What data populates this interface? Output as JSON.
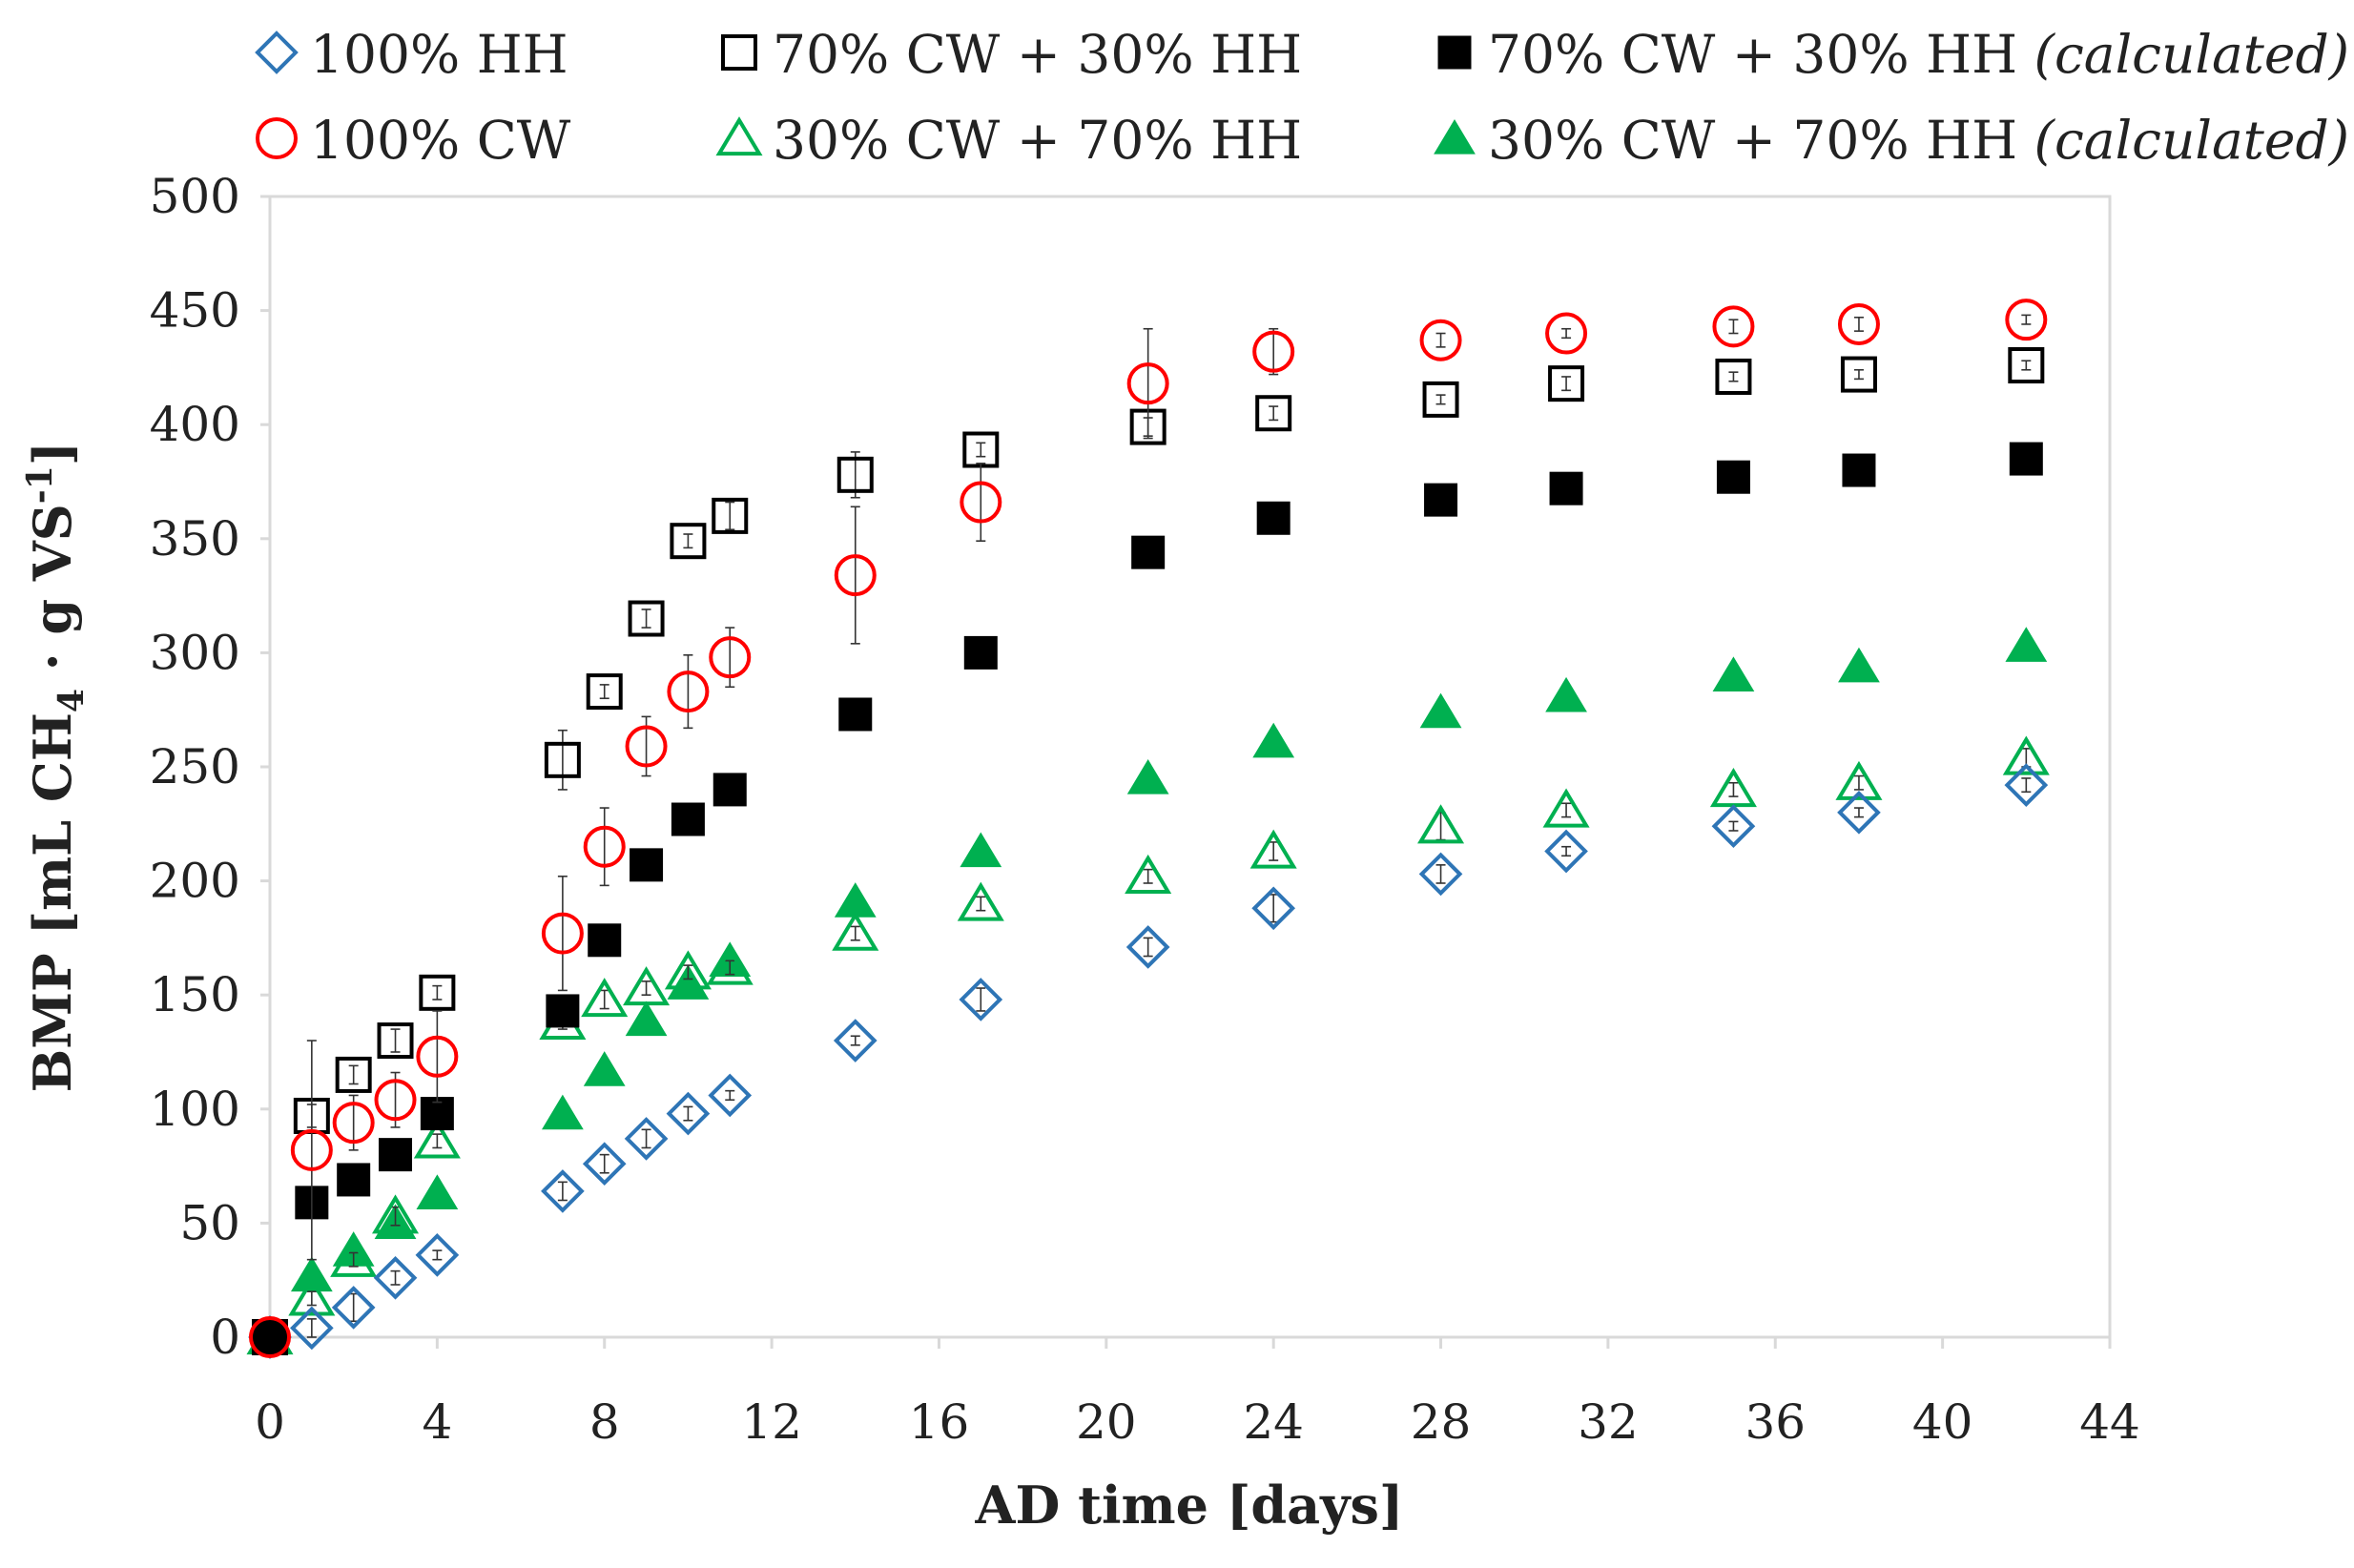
{
  "chart_data": {
    "type": "scatter",
    "title": "",
    "xlabel": "AD time [days]",
    "ylabel": {
      "main": "BMP [mL CH",
      "sub": "4",
      "mid": " · g VS",
      "sup": "-1",
      "end": "]"
    },
    "xlim": [
      0,
      44
    ],
    "ylim": [
      0,
      500
    ],
    "xticks": [
      0,
      4,
      8,
      12,
      16,
      20,
      24,
      28,
      32,
      36,
      40,
      44
    ],
    "yticks": [
      0,
      50,
      100,
      150,
      200,
      250,
      300,
      350,
      400,
      450,
      500
    ],
    "grid": false,
    "legend_position": "top",
    "series": [
      {
        "name": "100% HH",
        "marker": "diamond-open",
        "color": "#2e75b6",
        "x": [
          0,
          1,
          2,
          3,
          4,
          7,
          8,
          9,
          10,
          11,
          14,
          17,
          21,
          24,
          28,
          31,
          35,
          38,
          42
        ],
        "y": [
          0,
          4,
          13,
          26,
          36,
          64,
          76,
          87,
          98,
          106,
          130,
          148,
          171,
          188,
          203,
          213,
          224,
          230,
          242
        ],
        "err": [
          0,
          4,
          6,
          3,
          2,
          4,
          4,
          4,
          3,
          2,
          2,
          5,
          4,
          6,
          4,
          2,
          2,
          2,
          3
        ]
      },
      {
        "name": "100% CW",
        "marker": "circle-open",
        "color": "#ff0000",
        "x": [
          0,
          1,
          2,
          3,
          4,
          7,
          8,
          9,
          10,
          11,
          14,
          17,
          21,
          24,
          28,
          31,
          35,
          38,
          42
        ],
        "y": [
          0,
          82,
          94,
          104,
          123,
          177,
          215,
          259,
          283,
          298,
          334,
          366,
          418,
          432,
          437,
          440,
          443,
          444,
          446
        ],
        "err": [
          0,
          48,
          12,
          12,
          20,
          25,
          17,
          13,
          16,
          13,
          30,
          17,
          24,
          10,
          3,
          2,
          3,
          3,
          2
        ]
      },
      {
        "name": "70% CW + 30% HH",
        "marker": "square-open",
        "color": "#000000",
        "x": [
          0,
          1,
          2,
          3,
          4,
          7,
          8,
          9,
          10,
          11,
          14,
          17,
          21,
          24,
          28,
          31,
          35,
          38,
          42
        ],
        "y": [
          0,
          97,
          115,
          130,
          151,
          253,
          283,
          315,
          349,
          360,
          378,
          389,
          399,
          405,
          411,
          418,
          421,
          422,
          426
        ],
        "err": [
          0,
          5,
          4,
          5,
          3,
          13,
          3,
          4,
          3,
          6,
          10,
          3,
          4,
          3,
          2,
          3,
          2,
          2,
          2
        ]
      },
      {
        "name": "30% CW + 70% HH",
        "marker": "triangle-open",
        "color": "#00b050",
        "x": [
          0,
          1,
          2,
          3,
          4,
          7,
          8,
          9,
          10,
          11,
          14,
          17,
          21,
          24,
          28,
          31,
          35,
          38,
          42
        ],
        "y": [
          0,
          17,
          34,
          53,
          86,
          138,
          148,
          153,
          160,
          162,
          177,
          190,
          202,
          213,
          224,
          231,
          240,
          243,
          254
        ],
        "err": [
          0,
          3,
          3,
          4,
          3,
          3,
          4,
          3,
          3,
          3,
          3,
          3,
          3,
          4,
          6,
          3,
          3,
          3,
          4
        ]
      },
      {
        "name": "70% CW + 30% HH",
        "suffix": "(calculated)",
        "marker": "square-filled",
        "color": "#000000",
        "x": [
          0,
          1,
          2,
          3,
          4,
          7,
          8,
          9,
          10,
          11,
          14,
          17,
          21,
          24,
          28,
          31,
          35,
          38,
          42
        ],
        "y": [
          0,
          59,
          69,
          80,
          98,
          143,
          174,
          207,
          227,
          240,
          273,
          300,
          344,
          359,
          367,
          372,
          377,
          380,
          385
        ]
      },
      {
        "name": "30% CW + 70% HH",
        "suffix": "(calculated)",
        "marker": "triangle-filled",
        "color": "#00b050",
        "x": [
          0,
          1,
          2,
          3,
          4,
          7,
          8,
          9,
          10,
          11,
          14,
          17,
          21,
          24,
          28,
          31,
          35,
          38,
          42
        ],
        "y": [
          0,
          27,
          38,
          50,
          63,
          98,
          117,
          139,
          155,
          165,
          191,
          213,
          245,
          261,
          274,
          281,
          290,
          294,
          303
        ]
      }
    ]
  }
}
